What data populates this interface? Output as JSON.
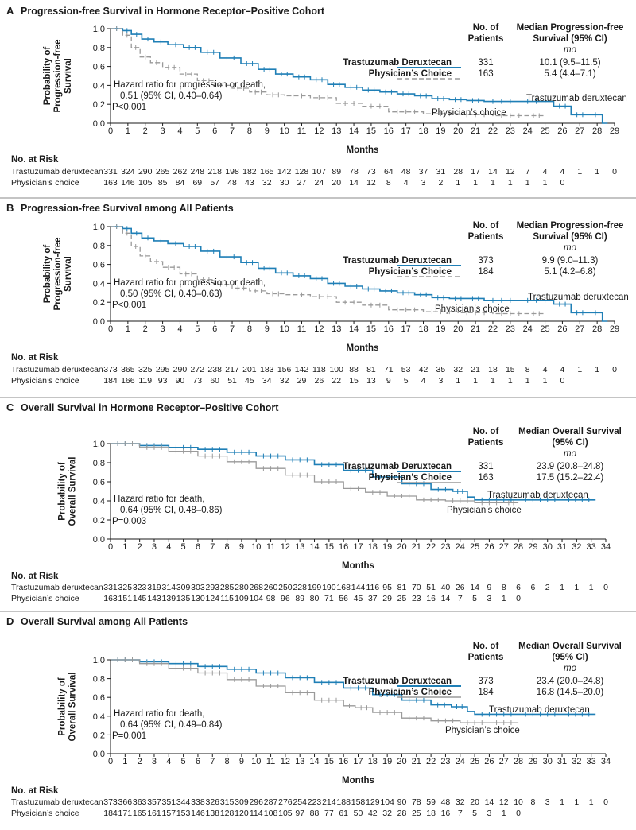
{
  "colors": {
    "tdxd": "#1f7fb6",
    "pc": "#9a9a9a",
    "divider": "#888888"
  },
  "common": {
    "xlabel": "Months",
    "risk_header": "No. at Risk",
    "col_patients": [
      "No. of",
      "Patients"
    ],
    "unit": "mo",
    "arm_tdxd_label": "Trastuzumab deruxtecan",
    "arm_pc_label": "Physician’s choice",
    "row_tdxd": "Trastuzumab Deruxtecan",
    "row_pc": "Physician’s Choice",
    "yticks": [
      "0.0",
      "0.2",
      "0.4",
      "0.6",
      "0.8",
      "1.0"
    ]
  },
  "panels": [
    {
      "letter": "A",
      "title": "Progression-free Survival in Hormone Receptor–Positive Cohort",
      "ylabel": [
        "Probability of",
        "Progression-free",
        "Survival"
      ],
      "col_median": [
        "Median Progression-free",
        "Survival (95% CI)"
      ],
      "n_tdxd": "331",
      "med_tdxd": "10.1 (9.5–11.5)",
      "n_pc": "163",
      "med_pc": "5.4 (4.4–7.1)",
      "hr": [
        "Hazard ratio for progression or death,",
        "0.51 (95% CI, 0.40–0.64)",
        "P<0.001"
      ],
      "risk_tdxd": [
        "331",
        "324",
        "290",
        "265",
        "262",
        "248",
        "218",
        "198",
        "182",
        "165",
        "142",
        "128",
        "107",
        "89",
        "78",
        "73",
        "64",
        "48",
        "37",
        "31",
        "28",
        "17",
        "14",
        "12",
        "7",
        "4",
        "4",
        "1",
        "1",
        "0"
      ],
      "risk_pc": [
        "163",
        "146",
        "105",
        "85",
        "84",
        "69",
        "57",
        "48",
        "43",
        "32",
        "30",
        "27",
        "24",
        "20",
        "14",
        "12",
        "8",
        "4",
        "3",
        "2",
        "1",
        "1",
        "1",
        "1",
        "1",
        "1",
        "0"
      ]
    },
    {
      "letter": "B",
      "title": "Progression-free Survival among All Patients",
      "ylabel": [
        "Probability of",
        "Progression-free",
        "Survival"
      ],
      "col_median": [
        "Median Progression-free",
        "Survival (95% CI)"
      ],
      "n_tdxd": "373",
      "med_tdxd": "9.9 (9.0–11.3)",
      "n_pc": "184",
      "med_pc": "5.1 (4.2–6.8)",
      "hr": [
        "Hazard ratio for progression or death,",
        "0.50 (95% CI, 0.40–0.63)",
        "P<0.001"
      ],
      "risk_tdxd": [
        "373",
        "365",
        "325",
        "295",
        "290",
        "272",
        "238",
        "217",
        "201",
        "183",
        "156",
        "142",
        "118",
        "100",
        "88",
        "81",
        "71",
        "53",
        "42",
        "35",
        "32",
        "21",
        "18",
        "15",
        "8",
        "4",
        "4",
        "1",
        "1",
        "0"
      ],
      "risk_pc": [
        "184",
        "166",
        "119",
        "93",
        "90",
        "73",
        "60",
        "51",
        "45",
        "34",
        "32",
        "29",
        "26",
        "22",
        "15",
        "13",
        "9",
        "5",
        "4",
        "3",
        "1",
        "1",
        "1",
        "1",
        "1",
        "1",
        "0"
      ]
    },
    {
      "letter": "C",
      "title": "Overall Survival in Hormone Receptor–Positive Cohort",
      "ylabel": [
        "Probability of",
        "Overall Survival"
      ],
      "col_median": [
        "Median Overall Survival",
        "(95% CI)"
      ],
      "n_tdxd": "331",
      "med_tdxd": "23.9 (20.8–24.8)",
      "n_pc": "163",
      "med_pc": "17.5 (15.2–22.4)",
      "hr": [
        "Hazard ratio for death,",
        "0.64 (95% CI, 0.48–0.86)",
        "P=0.003"
      ],
      "risk_tdxd": [
        "331",
        "325",
        "323",
        "319",
        "314",
        "309",
        "303",
        "293",
        "285",
        "280",
        "268",
        "260",
        "250",
        "228",
        "199",
        "190",
        "168",
        "144",
        "116",
        "95",
        "81",
        "70",
        "51",
        "40",
        "26",
        "14",
        "9",
        "8",
        "6",
        "6",
        "2",
        "1",
        "1",
        "1",
        "0"
      ],
      "risk_pc": [
        "163",
        "151",
        "145",
        "143",
        "139",
        "135",
        "130",
        "124",
        "115",
        "109",
        "104",
        "98",
        "96",
        "89",
        "80",
        "71",
        "56",
        "45",
        "37",
        "29",
        "25",
        "23",
        "16",
        "14",
        "7",
        "5",
        "3",
        "1",
        "0"
      ]
    },
    {
      "letter": "D",
      "title": "Overall Survival among All Patients",
      "ylabel": [
        "Probability of",
        "Overall Survival"
      ],
      "col_median": [
        "Median Overall Survival",
        "(95% CI)"
      ],
      "n_tdxd": "373",
      "med_tdxd": "23.4 (20.0–24.8)",
      "n_pc": "184",
      "med_pc": "16.8 (14.5–20.0)",
      "hr": [
        "Hazard ratio for death,",
        "0.64 (95% CI, 0.49–0.84)",
        "P=0.001"
      ],
      "risk_tdxd": [
        "373",
        "366",
        "363",
        "357",
        "351",
        "344",
        "338",
        "326",
        "315",
        "309",
        "296",
        "287",
        "276",
        "254",
        "223",
        "214",
        "188",
        "158",
        "129",
        "104",
        "90",
        "78",
        "59",
        "48",
        "32",
        "20",
        "14",
        "12",
        "10",
        "8",
        "3",
        "1",
        "1",
        "1",
        "0"
      ],
      "risk_pc": [
        "184",
        "171",
        "165",
        "161",
        "157",
        "153",
        "146",
        "138",
        "128",
        "120",
        "114",
        "108",
        "105",
        "97",
        "88",
        "77",
        "61",
        "50",
        "42",
        "32",
        "28",
        "25",
        "18",
        "16",
        "7",
        "5",
        "3",
        "1",
        "0"
      ]
    }
  ],
  "chart_data": [
    {
      "type": "line",
      "title": "Progression-free Survival in Hormone Receptor–Positive Cohort",
      "xlabel": "Months",
      "ylabel": "Probability of Progression-free Survival",
      "xlim": [
        0,
        29
      ],
      "ylim": [
        0,
        1.0
      ],
      "series": [
        {
          "name": "Trastuzumab deruxtecan",
          "x": [
            0,
            0.7,
            1.2,
            1.8,
            2.5,
            3.3,
            4.2,
            5.2,
            6.3,
            7.5,
            8.5,
            9.5,
            10.5,
            11.5,
            12.5,
            13.5,
            14.5,
            15.5,
            16.5,
            17.5,
            18.5,
            19.5,
            20.5,
            21.5,
            23.5,
            25.5,
            26.5,
            27.5,
            28.3,
            28.6
          ],
          "y": [
            1.0,
            0.98,
            0.94,
            0.89,
            0.86,
            0.83,
            0.8,
            0.75,
            0.69,
            0.63,
            0.57,
            0.52,
            0.49,
            0.46,
            0.41,
            0.38,
            0.35,
            0.33,
            0.31,
            0.29,
            0.26,
            0.25,
            0.24,
            0.23,
            0.23,
            0.18,
            0.09,
            0.09,
            0.0,
            0.0
          ]
        },
        {
          "name": "Physician’s choice",
          "x": [
            0,
            0.7,
            1.2,
            1.7,
            2.3,
            3.0,
            4.0,
            5.0,
            6.0,
            7.0,
            8.0,
            9.0,
            10.0,
            11.5,
            13.0,
            14.5,
            16.0,
            18.0,
            20.0,
            22.0,
            24.0,
            25.0
          ],
          "y": [
            1.0,
            0.93,
            0.8,
            0.7,
            0.64,
            0.59,
            0.52,
            0.45,
            0.4,
            0.37,
            0.33,
            0.3,
            0.29,
            0.27,
            0.21,
            0.18,
            0.12,
            0.1,
            0.09,
            0.08,
            0.08,
            0.08
          ]
        }
      ]
    },
    {
      "type": "line",
      "title": "Progression-free Survival among All Patients",
      "xlabel": "Months",
      "ylabel": "Probability of Progression-free Survival",
      "xlim": [
        0,
        29
      ],
      "ylim": [
        0,
        1.0
      ],
      "series": [
        {
          "name": "Trastuzumab deruxtecan",
          "x": [
            0,
            0.7,
            1.2,
            1.8,
            2.5,
            3.3,
            4.2,
            5.2,
            6.3,
            7.5,
            8.5,
            9.5,
            10.5,
            11.5,
            12.5,
            13.5,
            14.5,
            15.5,
            16.5,
            17.5,
            18.5,
            19.5,
            20.5,
            21.5,
            23.5,
            25.5,
            26.5,
            27.5,
            28.3,
            28.6
          ],
          "y": [
            1.0,
            0.98,
            0.93,
            0.88,
            0.85,
            0.82,
            0.79,
            0.74,
            0.68,
            0.62,
            0.56,
            0.51,
            0.48,
            0.45,
            0.4,
            0.37,
            0.34,
            0.32,
            0.3,
            0.28,
            0.25,
            0.24,
            0.24,
            0.22,
            0.22,
            0.18,
            0.09,
            0.09,
            0.0,
            0.0
          ]
        },
        {
          "name": "Physician’s choice",
          "x": [
            0,
            0.7,
            1.2,
            1.7,
            2.3,
            3.0,
            4.0,
            5.0,
            6.0,
            7.0,
            8.0,
            9.0,
            10.0,
            11.5,
            13.0,
            14.5,
            16.0,
            18.0,
            20.0,
            22.0,
            24.0,
            25.0
          ],
          "y": [
            1.0,
            0.93,
            0.79,
            0.69,
            0.63,
            0.57,
            0.5,
            0.44,
            0.39,
            0.35,
            0.32,
            0.29,
            0.28,
            0.26,
            0.2,
            0.17,
            0.12,
            0.1,
            0.09,
            0.08,
            0.08,
            0.08
          ]
        }
      ]
    },
    {
      "type": "line",
      "title": "Overall Survival in Hormone Receptor–Positive Cohort",
      "xlabel": "Months",
      "ylabel": "Probability of Overall Survival",
      "xlim": [
        0,
        34
      ],
      "ylim": [
        0,
        1.0
      ],
      "series": [
        {
          "name": "Trastuzumab deruxtecan",
          "x": [
            0,
            2,
            4,
            6,
            8,
            10,
            12,
            14,
            16,
            18,
            20,
            22,
            23.5,
            24.5,
            25,
            28,
            31,
            33.3
          ],
          "y": [
            1.0,
            0.98,
            0.96,
            0.94,
            0.91,
            0.87,
            0.83,
            0.78,
            0.72,
            0.65,
            0.58,
            0.52,
            0.5,
            0.44,
            0.41,
            0.41,
            0.41,
            0.41
          ]
        },
        {
          "name": "Physician’s choice",
          "x": [
            0,
            2,
            4,
            6,
            8,
            10,
            12,
            14,
            16,
            17.5,
            19,
            21,
            23,
            25,
            27,
            28
          ],
          "y": [
            1.0,
            0.96,
            0.92,
            0.87,
            0.81,
            0.74,
            0.67,
            0.6,
            0.53,
            0.49,
            0.45,
            0.41,
            0.4,
            0.38,
            0.38,
            0.38
          ]
        }
      ]
    },
    {
      "type": "line",
      "title": "Overall Survival among All Patients",
      "xlabel": "Months",
      "ylabel": "Probability of Overall Survival",
      "xlim": [
        0,
        34
      ],
      "ylim": [
        0,
        1.0
      ],
      "series": [
        {
          "name": "Trastuzumab deruxtecan",
          "x": [
            0,
            2,
            4,
            6,
            8,
            10,
            12,
            14,
            16,
            18,
            20,
            22,
            23.4,
            24.5,
            25,
            28,
            31,
            33.3
          ],
          "y": [
            1.0,
            0.98,
            0.96,
            0.93,
            0.9,
            0.86,
            0.81,
            0.76,
            0.7,
            0.63,
            0.57,
            0.52,
            0.5,
            0.45,
            0.42,
            0.42,
            0.42,
            0.42
          ]
        },
        {
          "name": "Physician’s choice",
          "x": [
            0,
            2,
            4,
            6,
            8,
            10,
            12,
            14,
            16,
            16.8,
            18,
            20,
            22,
            24,
            26,
            28
          ],
          "y": [
            1.0,
            0.96,
            0.91,
            0.86,
            0.79,
            0.72,
            0.65,
            0.57,
            0.51,
            0.49,
            0.44,
            0.38,
            0.35,
            0.33,
            0.33,
            0.33
          ]
        }
      ]
    }
  ]
}
